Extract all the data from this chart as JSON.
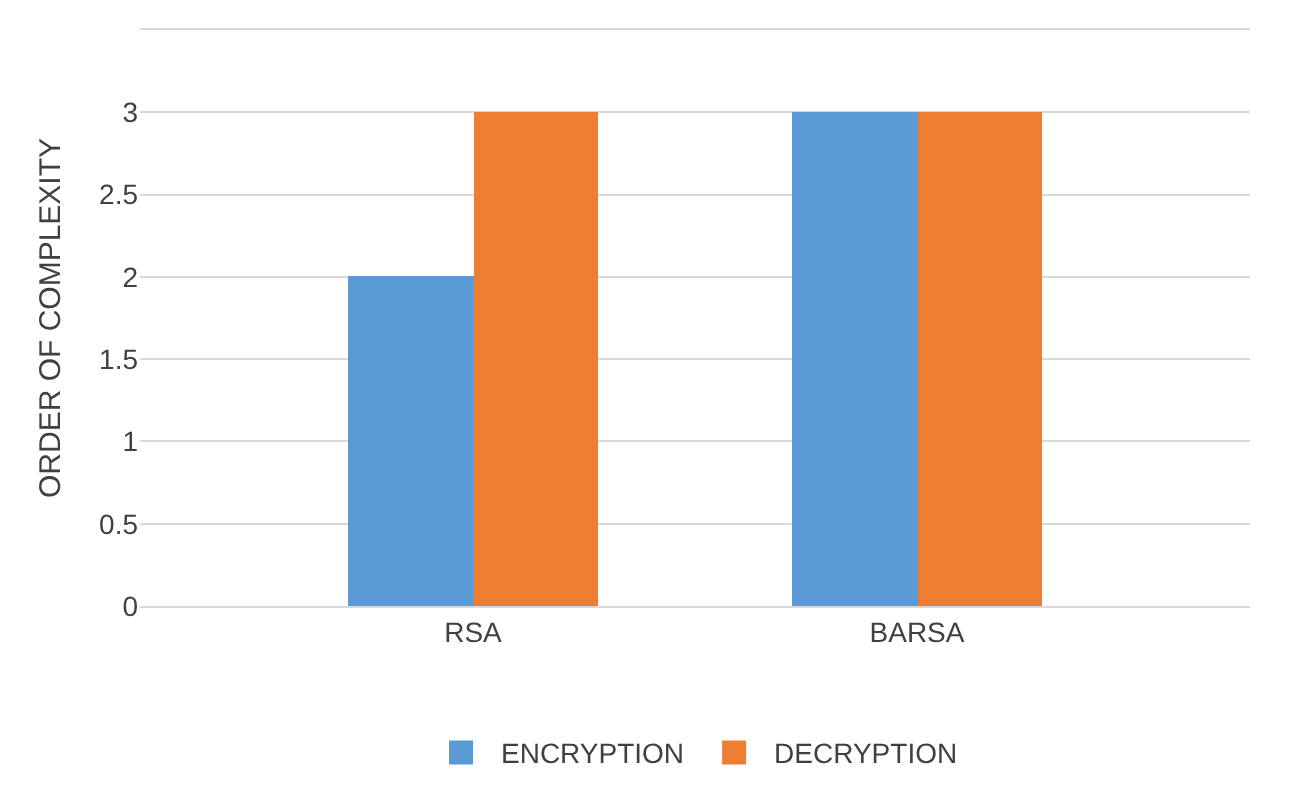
{
  "chart_data": {
    "type": "bar",
    "ylabel": "ORDER OF COMPLEXITY",
    "categories": [
      "RSA",
      "BARSA"
    ],
    "series": [
      {
        "name": "ENCRYPTION",
        "color": "#5b9bd5",
        "values": [
          2,
          3
        ]
      },
      {
        "name": "DECRYPTION",
        "color": "#ed7d31",
        "values": [
          3,
          3
        ]
      }
    ],
    "ylim": [
      0,
      3.5
    ],
    "yticks": [
      0,
      0.5,
      1,
      1.5,
      2,
      2.5,
      3,
      {
        "value": 3.5,
        "label": null
      }
    ],
    "grid": "y",
    "legend": "bottom"
  }
}
